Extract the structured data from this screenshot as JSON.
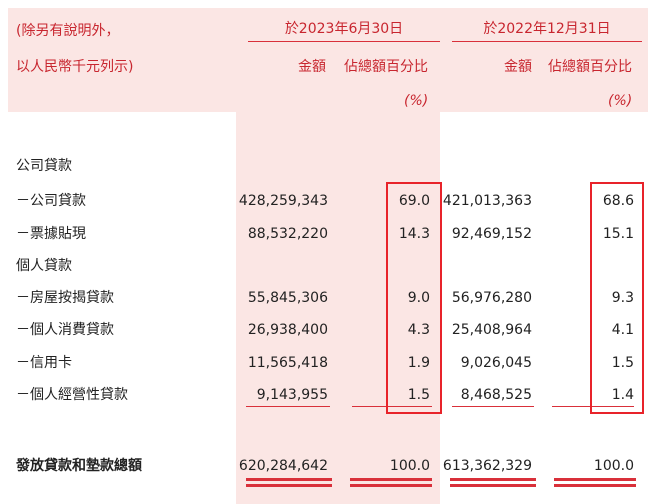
{
  "header": {
    "note_line1": "(除另有說明外，",
    "note_line2": "以人民幣千元列示)",
    "period_2023": "於2023年6月30日",
    "period_2022": "於2022年12月31日",
    "col_amount": "金額",
    "col_share": "佔總額百分比",
    "col_share_unit": "(%)"
  },
  "rows": [
    {
      "label": "公司貸款",
      "amount_2023": "",
      "pct_2023": "",
      "amount_2022": "",
      "pct_2022": ""
    },
    {
      "label": "－公司貸款",
      "amount_2023": "428,259,343",
      "pct_2023": "69.0",
      "amount_2022": "421,013,363",
      "pct_2022": "68.6"
    },
    {
      "label": "－票據貼現",
      "amount_2023": "88,532,220",
      "pct_2023": "14.3",
      "amount_2022": "92,469,152",
      "pct_2022": "15.1"
    },
    {
      "label": "個人貸款",
      "amount_2023": "",
      "pct_2023": "",
      "amount_2022": "",
      "pct_2022": ""
    },
    {
      "label": "－房屋按揭貸款",
      "amount_2023": "55,845,306",
      "pct_2023": "9.0",
      "amount_2022": "56,976,280",
      "pct_2022": "9.3"
    },
    {
      "label": "－個人消費貸款",
      "amount_2023": "26,938,400",
      "pct_2023": "4.3",
      "amount_2022": "25,408,964",
      "pct_2022": "4.1"
    },
    {
      "label": "－信用卡",
      "amount_2023": "11,565,418",
      "pct_2023": "1.9",
      "amount_2022": "9,026,045",
      "pct_2022": "1.5"
    },
    {
      "label": "－個人經營性貸款",
      "amount_2023": "9,143,955",
      "pct_2023": "1.5",
      "amount_2022": "8,468,525",
      "pct_2022": "1.4"
    }
  ],
  "total": {
    "label": "發放貸款和墊款總額",
    "amount_2023": "620,284,642",
    "pct_2023": "100.0",
    "amount_2022": "613,362,329",
    "pct_2022": "100.0"
  },
  "colors": {
    "header_band": "#fbe6e4",
    "accent_red": "#c8262f",
    "highlight_box": "#e8232a"
  }
}
